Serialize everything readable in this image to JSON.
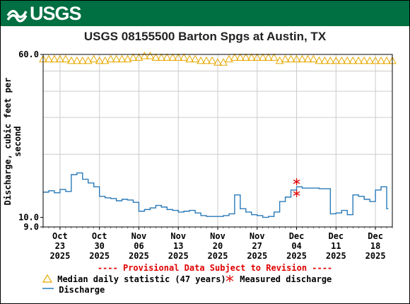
{
  "banner": {
    "logo_text": "USGS",
    "color": "#006f41"
  },
  "chart_data": {
    "type": "line",
    "title": "USGS 08155500 Barton Spgs at Austin, TX",
    "xlabel": "",
    "ylabel": "Discharge, cubic feet per second",
    "y_scale": "log",
    "ylim": [
      9.0,
      60.0
    ],
    "y_ticks": [
      {
        "value": 60.0,
        "label": "60.0"
      },
      {
        "value": 10.0,
        "label": "10.0"
      },
      {
        "value": 9.0,
        "label": "9.0"
      }
    ],
    "y_gridlines": [
      20,
      30,
      40,
      50
    ],
    "xlim": [
      "2025-10-20",
      "2025-12-21"
    ],
    "x_ticks": [
      {
        "date": "2025-10-23",
        "month": "Oct",
        "day": "23",
        "year": "2025"
      },
      {
        "date": "2025-10-30",
        "month": "Oct",
        "day": "30",
        "year": "2025"
      },
      {
        "date": "2025-11-06",
        "month": "Nov",
        "day": "06",
        "year": "2025"
      },
      {
        "date": "2025-11-13",
        "month": "Nov",
        "day": "13",
        "year": "2025"
      },
      {
        "date": "2025-11-20",
        "month": "Nov",
        "day": "20",
        "year": "2025"
      },
      {
        "date": "2025-11-27",
        "month": "Nov",
        "day": "27",
        "year": "2025"
      },
      {
        "date": "2025-12-04",
        "month": "Dec",
        "day": "04",
        "year": "2025"
      },
      {
        "date": "2025-12-11",
        "month": "Dec",
        "day": "11",
        "year": "2025"
      },
      {
        "date": "2025-12-18",
        "month": "Dec",
        "day": "18",
        "year": "2025"
      }
    ],
    "grid": true,
    "notice": "---- Provisional Data Subject to Revision ----",
    "series": [
      {
        "name": "Median daily statistic (47 years)",
        "marker": "triangle",
        "color": "#e6a800",
        "x": [
          "2025-10-20",
          "2025-10-21",
          "2025-10-22",
          "2025-10-23",
          "2025-10-24",
          "2025-10-25",
          "2025-10-26",
          "2025-10-27",
          "2025-10-28",
          "2025-10-29",
          "2025-10-30",
          "2025-10-31",
          "2025-11-01",
          "2025-11-02",
          "2025-11-03",
          "2025-11-04",
          "2025-11-05",
          "2025-11-06",
          "2025-11-07",
          "2025-11-08",
          "2025-11-09",
          "2025-11-10",
          "2025-11-11",
          "2025-11-12",
          "2025-11-13",
          "2025-11-14",
          "2025-11-15",
          "2025-11-16",
          "2025-11-17",
          "2025-11-18",
          "2025-11-19",
          "2025-11-20",
          "2025-11-21",
          "2025-11-22",
          "2025-11-23",
          "2025-11-24",
          "2025-11-25",
          "2025-11-26",
          "2025-11-27",
          "2025-11-28",
          "2025-11-29",
          "2025-11-30",
          "2025-12-01",
          "2025-12-02",
          "2025-12-03",
          "2025-12-04",
          "2025-12-05",
          "2025-12-06",
          "2025-12-07",
          "2025-12-08",
          "2025-12-09",
          "2025-12-10",
          "2025-12-11",
          "2025-12-12",
          "2025-12-13",
          "2025-12-14",
          "2025-12-15",
          "2025-12-16",
          "2025-12-17",
          "2025-12-18",
          "2025-12-19",
          "2025-12-20",
          "2025-12-21"
        ],
        "y": [
          57,
          57,
          57,
          57,
          57,
          56,
          56,
          56,
          56,
          57,
          56,
          56,
          57,
          57,
          57,
          57,
          58,
          58,
          59,
          59,
          58,
          58,
          58,
          58,
          58,
          58,
          57,
          57,
          56,
          56,
          56,
          55,
          55,
          57,
          58,
          58,
          58,
          58,
          58,
          58,
          58,
          58,
          56,
          57,
          57,
          57,
          57,
          57,
          57,
          56,
          56,
          56,
          56,
          56,
          56,
          56,
          56,
          56,
          56,
          56,
          56,
          56,
          56
        ]
      },
      {
        "name": "Measured discharge",
        "marker": "asterisk",
        "color": "#dd0000",
        "x": [
          "2025-12-03",
          "2025-12-03"
        ],
        "y": [
          14.8,
          13.0
        ]
      },
      {
        "name": "Discharge",
        "marker": "line",
        "color": "#2a7ab8",
        "x": [
          "2025-10-20",
          "2025-10-21",
          "2025-10-22",
          "2025-10-23",
          "2025-10-24",
          "2025-10-25",
          "2025-10-26",
          "2025-10-27",
          "2025-10-28",
          "2025-10-29",
          "2025-10-30",
          "2025-10-31",
          "2025-11-01",
          "2025-11-02",
          "2025-11-03",
          "2025-11-04",
          "2025-11-05",
          "2025-11-06",
          "2025-11-07",
          "2025-11-08",
          "2025-11-09",
          "2025-11-10",
          "2025-11-11",
          "2025-11-12",
          "2025-11-13",
          "2025-11-14",
          "2025-11-15",
          "2025-11-16",
          "2025-11-17",
          "2025-11-18",
          "2025-11-19",
          "2025-11-20",
          "2025-11-21",
          "2025-11-22",
          "2025-11-23",
          "2025-11-24",
          "2025-11-25",
          "2025-11-26",
          "2025-11-27",
          "2025-11-28",
          "2025-11-29",
          "2025-11-30",
          "2025-12-01",
          "2025-12-02",
          "2025-12-03",
          "2025-12-04",
          "2025-12-05",
          "2025-12-06",
          "2025-12-07",
          "2025-12-08",
          "2025-12-09",
          "2025-12-10",
          "2025-12-11",
          "2025-12-12",
          "2025-12-13",
          "2025-12-14",
          "2025-12-15",
          "2025-12-16",
          "2025-12-17",
          "2025-12-18",
          "2025-12-19",
          "2025-12-20"
        ],
        "y": [
          13.2,
          13.4,
          13.1,
          13.6,
          13.3,
          16.0,
          16.3,
          15.2,
          14.6,
          14.0,
          12.6,
          12.4,
          12.3,
          12.0,
          12.2,
          12.1,
          11.8,
          10.7,
          10.9,
          11.1,
          11.4,
          11.2,
          10.9,
          10.8,
          10.6,
          10.7,
          10.8,
          10.5,
          10.2,
          10.1,
          10.1,
          10.1,
          10.2,
          10.4,
          12.8,
          11.0,
          10.6,
          10.3,
          10.2,
          10.0,
          10.1,
          10.6,
          11.9,
          12.5,
          13.5,
          14.0,
          13.8,
          13.8,
          13.8,
          13.7,
          13.7,
          10.4,
          10.5,
          10.8,
          10.3,
          12.8,
          12.6,
          12.2,
          11.9,
          13.5,
          14.0,
          11.0
        ]
      }
    ]
  }
}
